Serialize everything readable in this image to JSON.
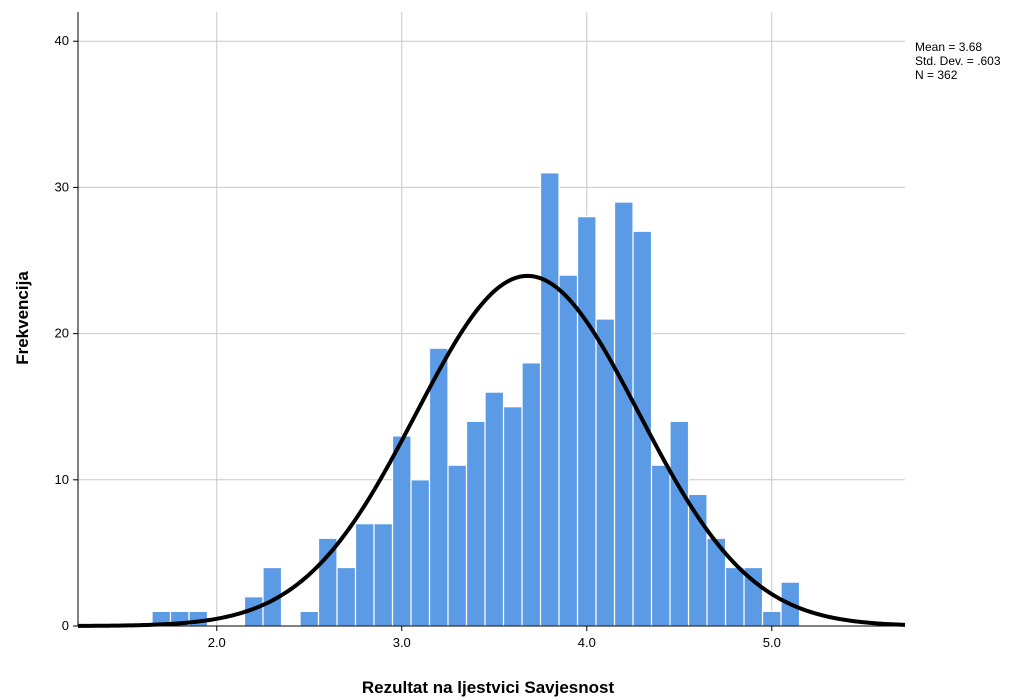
{
  "chart_data": {
    "type": "bar",
    "title": "",
    "xlabel": "Rezultat na ljestvici Savjesnost",
    "ylabel": "Frekvencija",
    "xlim": [
      1.25,
      5.72
    ],
    "ylim": [
      0,
      42
    ],
    "x_ticks": [
      2.0,
      3.0,
      4.0,
      5.0
    ],
    "x_tick_labels": [
      "2.0",
      "3.0",
      "4.0",
      "5.0"
    ],
    "y_ticks": [
      0,
      10,
      20,
      30,
      40
    ],
    "y_tick_labels": [
      "0",
      "10",
      "20",
      "30",
      "40"
    ],
    "grid": true,
    "bar_color": "#5b9be6",
    "bin_start": 1.65,
    "bin_width": 0.1,
    "bins": [
      {
        "x": 1.7,
        "count": 1
      },
      {
        "x": 1.8,
        "count": 1
      },
      {
        "x": 1.9,
        "count": 1
      },
      {
        "x": 2.0,
        "count": 0
      },
      {
        "x": 2.1,
        "count": 0
      },
      {
        "x": 2.2,
        "count": 2
      },
      {
        "x": 2.3,
        "count": 4
      },
      {
        "x": 2.4,
        "count": 0
      },
      {
        "x": 2.5,
        "count": 1
      },
      {
        "x": 2.6,
        "count": 6
      },
      {
        "x": 2.7,
        "count": 4
      },
      {
        "x": 2.8,
        "count": 7
      },
      {
        "x": 2.9,
        "count": 7
      },
      {
        "x": 3.0,
        "count": 13
      },
      {
        "x": 3.1,
        "count": 10
      },
      {
        "x": 3.2,
        "count": 19
      },
      {
        "x": 3.3,
        "count": 11
      },
      {
        "x": 3.4,
        "count": 14
      },
      {
        "x": 3.5,
        "count": 16
      },
      {
        "x": 3.6,
        "count": 15
      },
      {
        "x": 3.7,
        "count": 18
      },
      {
        "x": 3.8,
        "count": 31
      },
      {
        "x": 3.9,
        "count": 24
      },
      {
        "x": 4.0,
        "count": 28
      },
      {
        "x": 4.1,
        "count": 21
      },
      {
        "x": 4.2,
        "count": 29
      },
      {
        "x": 4.3,
        "count": 27
      },
      {
        "x": 4.4,
        "count": 11
      },
      {
        "x": 4.5,
        "count": 14
      },
      {
        "x": 4.6,
        "count": 9
      },
      {
        "x": 4.7,
        "count": 6
      },
      {
        "x": 4.8,
        "count": 4
      },
      {
        "x": 4.9,
        "count": 4
      },
      {
        "x": 5.0,
        "count": 1
      },
      {
        "x": 5.1,
        "count": 3
      }
    ],
    "normal_curve": {
      "mean": 3.68,
      "sd": 0.603,
      "n": 362,
      "color": "#000000"
    },
    "stats_box": {
      "mean": "Mean = 3.68",
      "sd": "Std. Dev. = .603",
      "n": "N = 362"
    }
  }
}
